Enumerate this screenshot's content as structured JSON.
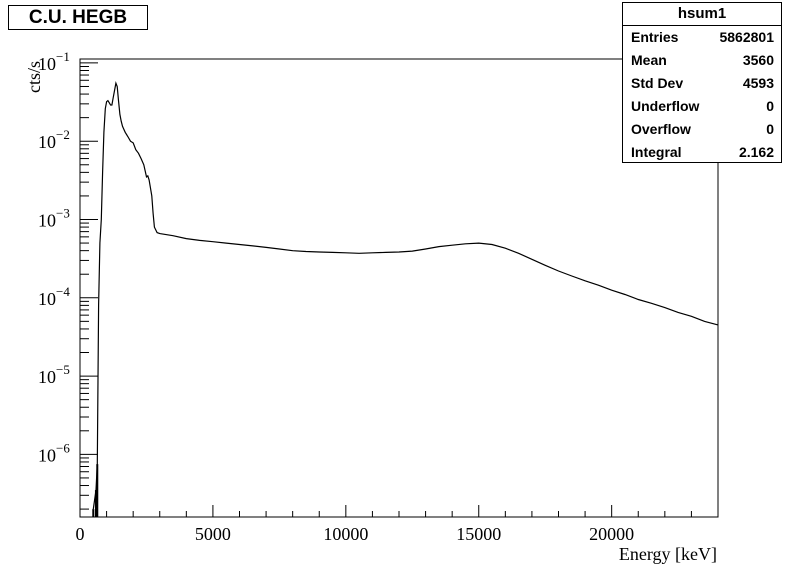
{
  "chart_data": {
    "type": "line",
    "title": "C.U. HEGB",
    "xlabel": "Energy [keV]",
    "ylabel": "cts/s",
    "xlim": [
      0,
      24000
    ],
    "ylim_log10": [
      -6.8,
      -0.95
    ],
    "y_scale": "log",
    "grid": false,
    "x_ticks": [
      {
        "value": 0,
        "label": "0"
      },
      {
        "value": 5000,
        "label": "5000"
      },
      {
        "value": 10000,
        "label": "10000"
      },
      {
        "value": 15000,
        "label": "15000"
      },
      {
        "value": 20000,
        "label": "20000"
      }
    ],
    "y_ticks": [
      {
        "exp": -1,
        "base": "10",
        "label": "−1"
      },
      {
        "exp": -2,
        "base": "10",
        "label": "−2"
      },
      {
        "exp": -3,
        "base": "10",
        "label": "−3"
      },
      {
        "exp": -4,
        "base": "10",
        "label": "−4"
      },
      {
        "exp": -5,
        "base": "10",
        "label": "−5"
      },
      {
        "exp": -6,
        "base": "10",
        "label": "−6"
      }
    ],
    "series": [
      {
        "points": [
          [
            500,
            2e-07
          ],
          [
            600,
            3.5e-07
          ],
          [
            650,
            7.5e-07
          ],
          [
            700,
            8e-05
          ],
          [
            750,
            0.0005
          ],
          [
            800,
            0.001
          ],
          [
            850,
            0.004
          ],
          [
            900,
            0.013
          ],
          [
            950,
            0.026
          ],
          [
            1000,
            0.032
          ],
          [
            1050,
            0.033
          ],
          [
            1100,
            0.031
          ],
          [
            1150,
            0.029
          ],
          [
            1200,
            0.029
          ],
          [
            1250,
            0.036
          ],
          [
            1300,
            0.045
          ],
          [
            1350,
            0.055
          ],
          [
            1400,
            0.05
          ],
          [
            1450,
            0.033
          ],
          [
            1500,
            0.022
          ],
          [
            1550,
            0.018
          ],
          [
            1600,
            0.0155
          ],
          [
            1700,
            0.013
          ],
          [
            1800,
            0.0115
          ],
          [
            1900,
            0.01
          ],
          [
            2000,
            0.0095
          ],
          [
            2100,
            0.0078
          ],
          [
            2200,
            0.007
          ],
          [
            2300,
            0.006
          ],
          [
            2400,
            0.005
          ],
          [
            2500,
            0.0035
          ],
          [
            2550,
            0.0036
          ],
          [
            2600,
            0.0032
          ],
          [
            2700,
            0.002
          ],
          [
            2750,
            0.0012
          ],
          [
            2800,
            0.0008
          ],
          [
            2900,
            0.00068
          ],
          [
            3000,
            0.00066
          ],
          [
            3500,
            0.00062
          ],
          [
            4000,
            0.00057
          ],
          [
            4500,
            0.00054
          ],
          [
            5000,
            0.00052
          ],
          [
            5500,
            0.0005
          ],
          [
            6000,
            0.00048
          ],
          [
            6500,
            0.00046
          ],
          [
            7000,
            0.00044
          ],
          [
            7500,
            0.00042
          ],
          [
            8000,
            0.0004
          ],
          [
            8500,
            0.00039
          ],
          [
            9000,
            0.000385
          ],
          [
            9500,
            0.00038
          ],
          [
            10000,
            0.000375
          ],
          [
            10500,
            0.00037
          ],
          [
            11000,
            0.000375
          ],
          [
            11500,
            0.00038
          ],
          [
            12000,
            0.000385
          ],
          [
            12500,
            0.000395
          ],
          [
            13000,
            0.00042
          ],
          [
            13500,
            0.00045
          ],
          [
            14000,
            0.00047
          ],
          [
            14500,
            0.00049
          ],
          [
            15000,
            0.0005
          ],
          [
            15500,
            0.00048
          ],
          [
            16000,
            0.00043
          ],
          [
            16500,
            0.00037
          ],
          [
            17000,
            0.00031
          ],
          [
            17500,
            0.00026
          ],
          [
            18000,
            0.00022
          ],
          [
            18500,
            0.00019
          ],
          [
            19000,
            0.000165
          ],
          [
            19500,
            0.000145
          ],
          [
            20000,
            0.000125
          ],
          [
            20500,
            0.00011
          ],
          [
            21000,
            9.5e-05
          ],
          [
            21500,
            8.5e-05
          ],
          [
            22000,
            7.5e-05
          ],
          [
            22500,
            6.5e-05
          ],
          [
            23000,
            5.8e-05
          ],
          [
            23500,
            5e-05
          ],
          [
            24000,
            4.5e-05
          ]
        ]
      }
    ]
  },
  "stats_box": {
    "name": "hsum1",
    "entries_label": "Entries",
    "entries_value": "5862801",
    "mean_label": "Mean",
    "mean_value": "3560",
    "stddev_label": "Std Dev",
    "stddev_value": "4593",
    "underflow_label": "Underflow",
    "underflow_value": "0",
    "overflow_label": "Overflow",
    "overflow_value": "0",
    "integral_label": "Integral",
    "integral_value": "2.162"
  }
}
